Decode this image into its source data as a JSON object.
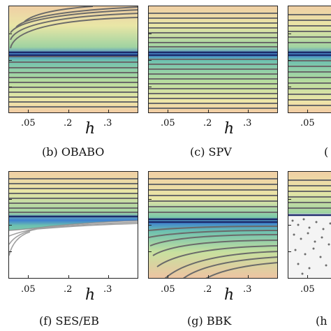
{
  "figure": {
    "axis_variable": "h",
    "x_tick_labels": [
      ".05",
      ".2",
      ".3"
    ],
    "partial_caption_fragment": "(",
    "panels": [
      {
        "id": "b",
        "caption": "(b) OBABO",
        "variant": "top-corner-gradient"
      },
      {
        "id": "c",
        "caption": "(c) SPV",
        "variant": "flat"
      },
      {
        "id": "d",
        "caption": "",
        "variant": "flat-cut"
      },
      {
        "id": "f",
        "caption": "(f) SES/EB",
        "variant": "white-bottom"
      },
      {
        "id": "g",
        "caption": "(g) BBK",
        "variant": "bottom-corner-gradient"
      },
      {
        "id": "h",
        "caption": "(h",
        "variant": "noisy-cut"
      }
    ]
  },
  "colors": {
    "warm": "#f1c9a3",
    "yellow": "#eee7a8",
    "green": "#a8d6a0",
    "teal": "#6cc0b0",
    "blue": "#3d7fd0",
    "contour": "#6a6a6a"
  }
}
